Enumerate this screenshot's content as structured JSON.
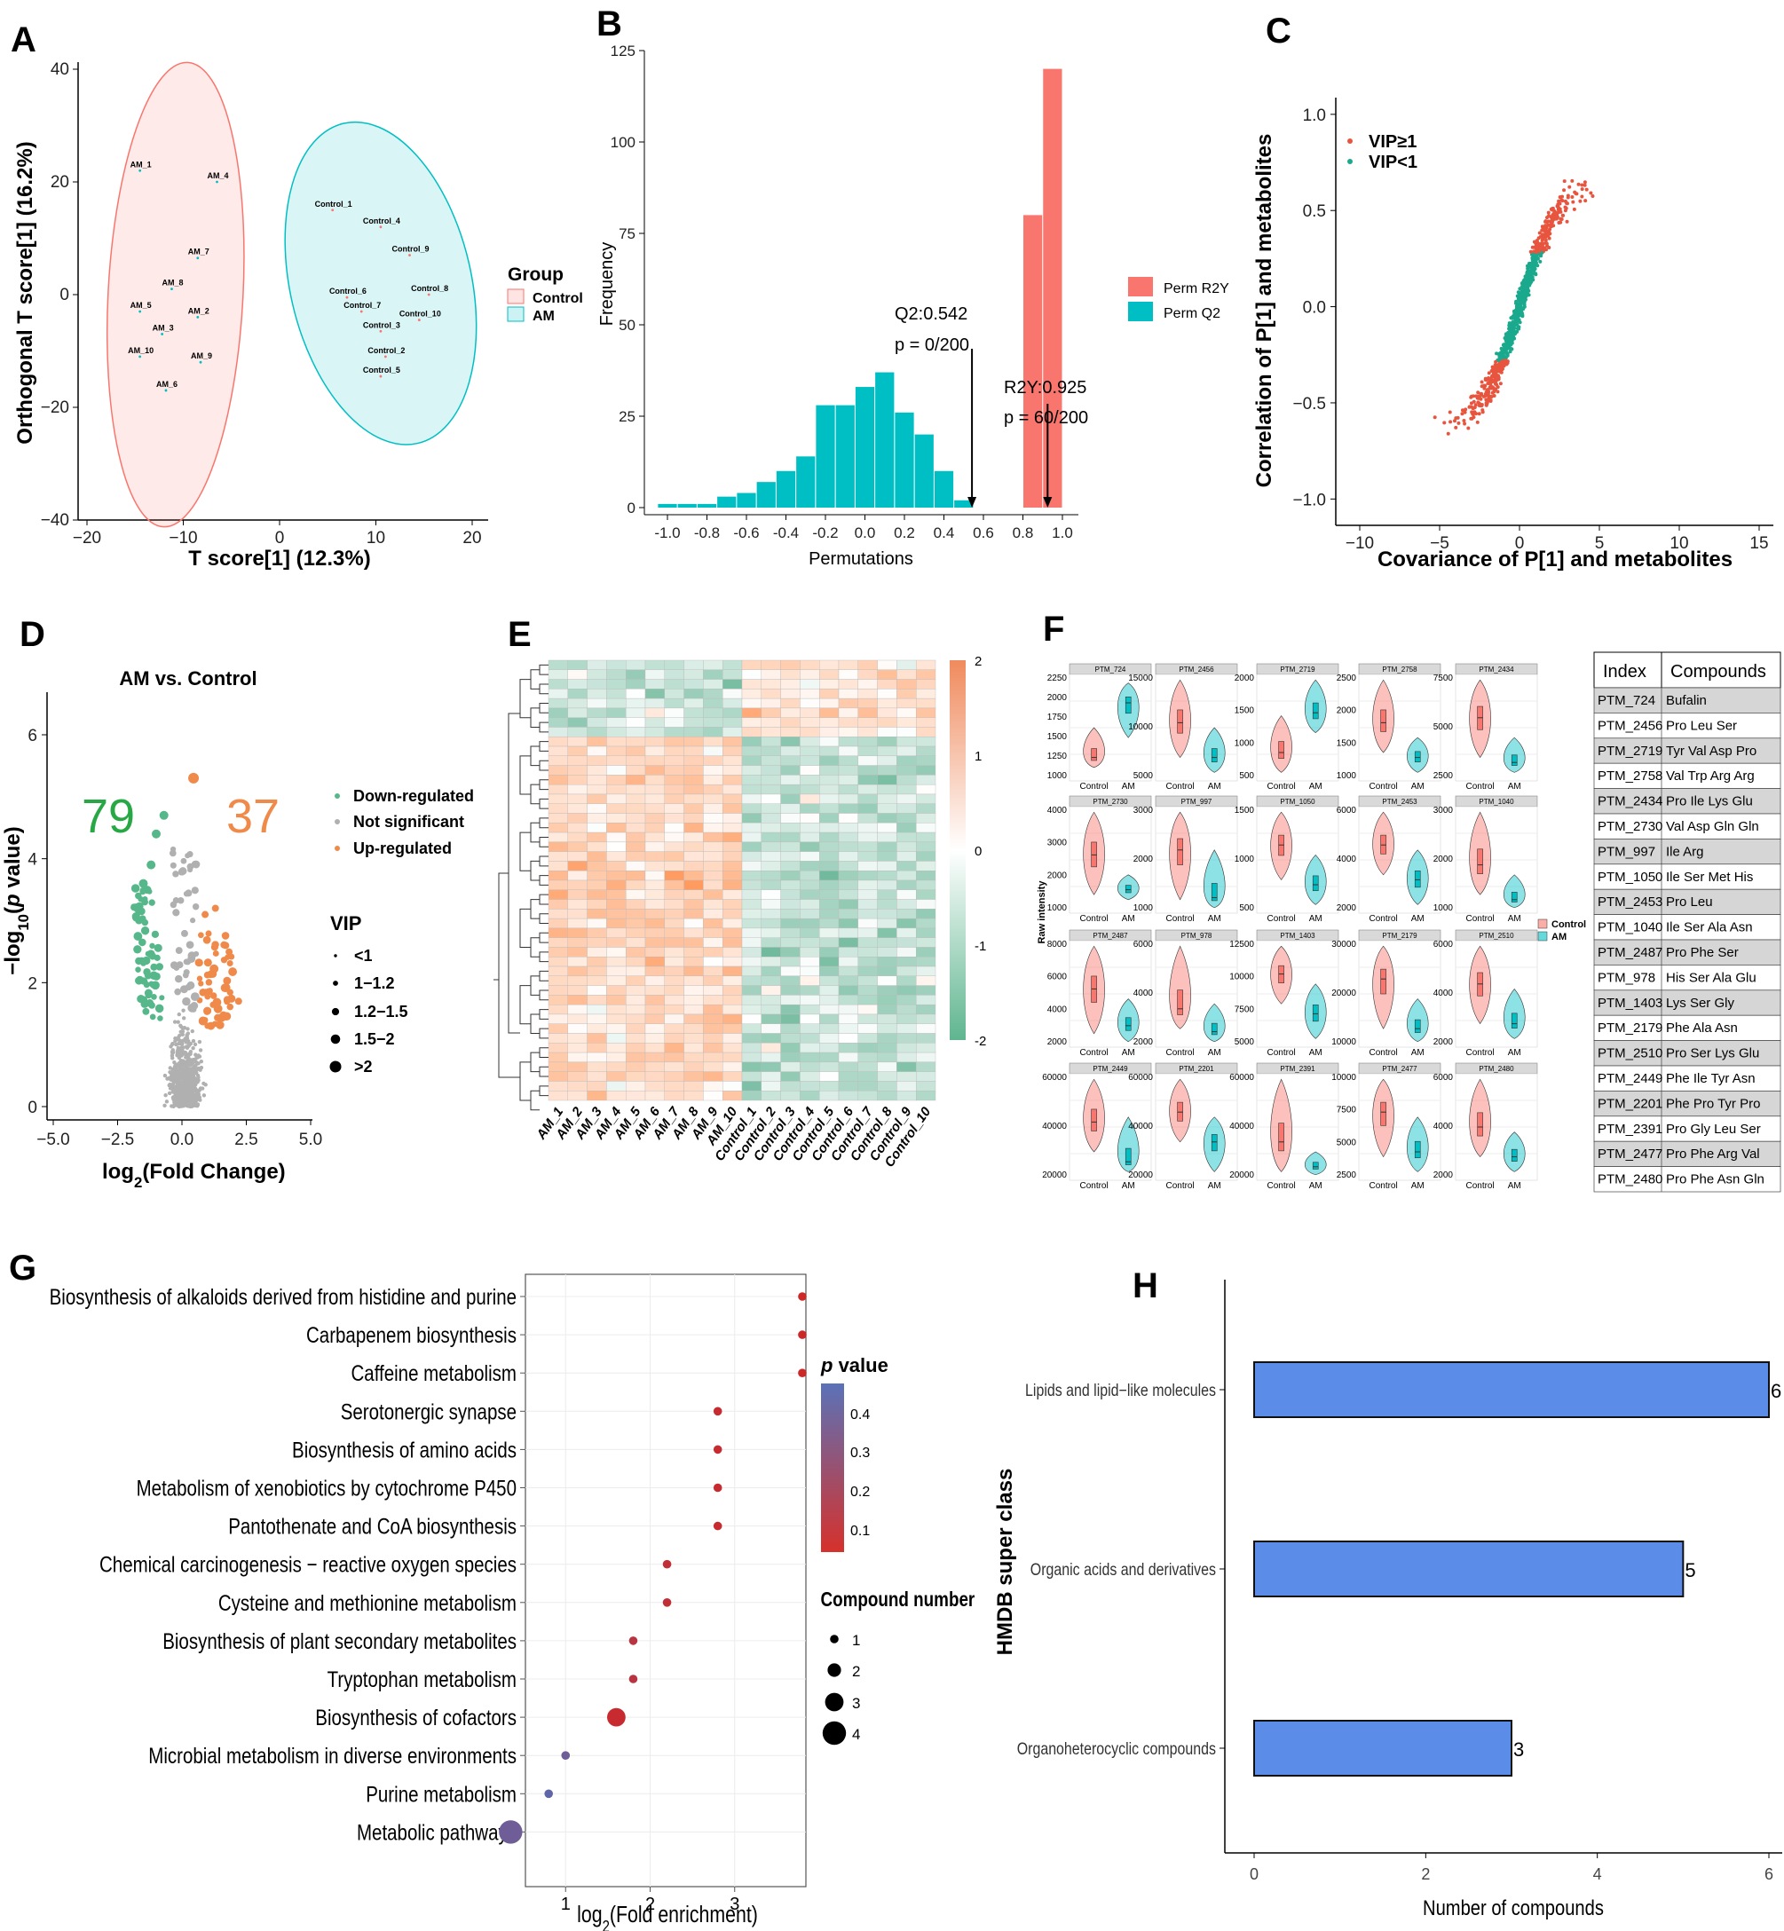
{
  "panels": [
    "A",
    "B",
    "C",
    "D",
    "E",
    "F",
    "G",
    "H"
  ],
  "colors": {
    "control": "#f8766d",
    "am": "#00bfc4",
    "down": "#56b88a",
    "up": "#ef8a4a",
    "ns": "#b0b0b0",
    "bar": "#5b8de8"
  },
  "chart_data": [
    {
      "panel": "A",
      "type": "scatter",
      "xlabel": "T score[1] (12.3%)",
      "ylabel": "Orthogonal T score[1] (16.2%)",
      "xlim": [
        -20,
        20
      ],
      "ylim": [
        -40,
        40
      ],
      "xticks": [
        "−20",
        "−10",
        "0",
        "10",
        "20"
      ],
      "yticks": [
        "−40",
        "−20",
        "0",
        "20",
        "40"
      ],
      "legend_title": "Group",
      "legend": [
        "Control",
        "AM"
      ],
      "points": [
        {
          "label": "AM_1",
          "x": -14.5,
          "y": 22,
          "g": "AM"
        },
        {
          "label": "AM_4",
          "x": -6.5,
          "y": 20,
          "g": "AM"
        },
        {
          "label": "AM_7",
          "x": -8.5,
          "y": 6.5,
          "g": "AM"
        },
        {
          "label": "AM_8",
          "x": -11.2,
          "y": 1,
          "g": "AM"
        },
        {
          "label": "AM_5",
          "x": -14.5,
          "y": -3,
          "g": "AM"
        },
        {
          "label": "AM_2",
          "x": -8.5,
          "y": -4,
          "g": "AM"
        },
        {
          "label": "AM_3",
          "x": -12.2,
          "y": -7,
          "g": "AM"
        },
        {
          "label": "AM_10",
          "x": -14.5,
          "y": -11,
          "g": "AM"
        },
        {
          "label": "AM_9",
          "x": -8.2,
          "y": -12,
          "g": "AM"
        },
        {
          "label": "AM_6",
          "x": -11.8,
          "y": -17,
          "g": "AM"
        },
        {
          "label": "Control_1",
          "x": 5.5,
          "y": 15,
          "g": "Control"
        },
        {
          "label": "Control_4",
          "x": 10.5,
          "y": 12,
          "g": "Control"
        },
        {
          "label": "Control_9",
          "x": 13.5,
          "y": 7,
          "g": "Control"
        },
        {
          "label": "Control_6",
          "x": 7,
          "y": -0.5,
          "g": "Control"
        },
        {
          "label": "Control_8",
          "x": 15.5,
          "y": 0,
          "g": "Control"
        },
        {
          "label": "Control_7",
          "x": 8.5,
          "y": -3,
          "g": "Control"
        },
        {
          "label": "Control_10",
          "x": 14.5,
          "y": -4.5,
          "g": "Control"
        },
        {
          "label": "Control_3",
          "x": 10.5,
          "y": -6.5,
          "g": "Control"
        },
        {
          "label": "Control_2",
          "x": 11,
          "y": -11,
          "g": "Control"
        },
        {
          "label": "Control_5",
          "x": 10.5,
          "y": -14.5,
          "g": "Control"
        }
      ]
    },
    {
      "panel": "B",
      "type": "bar",
      "xlabel": "Permutations",
      "ylabel": "Frequency",
      "xlim": [
        -1.05,
        1.1
      ],
      "ylim": [
        0,
        125
      ],
      "xticks": [
        "-1.0",
        "-0.8",
        "-0.6",
        "-0.4",
        "-0.2",
        "0.0",
        "0.2",
        "0.4",
        "0.6",
        "0.8",
        "1.0"
      ],
      "yticks": [
        "0",
        "25",
        "50",
        "75",
        "100",
        "125"
      ],
      "legend": [
        "Perm R2Y",
        "Perm Q2"
      ],
      "q2_bins": [
        [
          -1.0,
          1
        ],
        [
          -0.9,
          1
        ],
        [
          -0.8,
          1
        ],
        [
          -0.7,
          3
        ],
        [
          -0.6,
          4
        ],
        [
          -0.5,
          7
        ],
        [
          -0.4,
          10
        ],
        [
          -0.3,
          14
        ],
        [
          -0.2,
          28
        ],
        [
          -0.1,
          28
        ],
        [
          0.0,
          33
        ],
        [
          0.1,
          37
        ],
        [
          0.2,
          26
        ],
        [
          0.3,
          20
        ],
        [
          0.4,
          10
        ],
        [
          0.5,
          2
        ]
      ],
      "r2y_bins": [
        [
          0.85,
          80
        ],
        [
          0.95,
          120
        ]
      ],
      "annotations": [
        "Q2:0.542",
        "p = 0/200",
        "R2Y:0.925",
        "p = 60/200"
      ],
      "q2_value": 0.542,
      "r2y_value": 0.925
    },
    {
      "panel": "C",
      "type": "scatter",
      "xlabel": "Covariance of P[1] and metabolites",
      "ylabel": "Correlation of P[1] and metabolites",
      "xlim": [
        -11.5,
        16
      ],
      "ylim": [
        -1.1,
        1.05
      ],
      "xticks": [
        "−10",
        "−5",
        "0",
        "5",
        "10",
        "15"
      ],
      "yticks": [
        "−1.0",
        "−0.5",
        "0.0",
        "0.5",
        "1.0"
      ],
      "legend": [
        "VIP≥1",
        "VIP<1"
      ]
    },
    {
      "panel": "D",
      "type": "scatter",
      "title": "AM vs. Control",
      "xlabel": "log2(Fold Change)",
      "ylabel": "−log10(p value)",
      "xlim": [
        -5,
        5
      ],
      "ylim": [
        -0.2,
        6.7
      ],
      "xticks": [
        "−5.0",
        "−2.5",
        "0.0",
        "2.5",
        "5.0"
      ],
      "yticks": [
        "0",
        "2",
        "4",
        "6"
      ],
      "down_count": "79",
      "up_count": "37",
      "legend": [
        "Down-regulated",
        "Not significant",
        "Up-regulated"
      ],
      "vip_title": "VIP",
      "vip_legend": [
        "<1",
        "1−1.2",
        "1.2−1.5",
        "1.5−2",
        ">2"
      ]
    },
    {
      "panel": "E",
      "type": "heatmap",
      "columns": [
        "AM_1",
        "AM_2",
        "AM_3",
        "AM_4",
        "AM_5",
        "AM_6",
        "AM_7",
        "AM_8",
        "AM_9",
        "AM_10",
        "Control_1",
        "Control_2",
        "Control_3",
        "Control_4",
        "Control_5",
        "Control_6",
        "Control_7",
        "Control_8",
        "Control_9",
        "Control_10"
      ],
      "rows": 46,
      "scale_ticks": [
        "2",
        "1",
        "0",
        "-1",
        "-2"
      ]
    },
    {
      "panel": "F",
      "type": "table",
      "ylabel": "Raw intensity",
      "legend": [
        "Control",
        "AM"
      ],
      "xcats": [
        "Control",
        "AM"
      ],
      "violins": [
        {
          "name": "PTM_724",
          "ticks": [
            "1000",
            "1250",
            "1500",
            "1750",
            "2000",
            "2250"
          ],
          "c": [
            0.1,
            0.5,
            0.2
          ],
          "a": [
            0.4,
            0.95,
            0.75
          ]
        },
        {
          "name": "PTM_2456",
          "ticks": [
            "5000",
            "10000",
            "15000"
          ],
          "c": [
            0.2,
            0.98,
            0.55
          ],
          "a": [
            0.05,
            0.5,
            0.2
          ]
        },
        {
          "name": "PTM_2719",
          "ticks": [
            "500",
            "1000",
            "1500",
            "2000"
          ],
          "c": [
            0.05,
            0.62,
            0.25
          ],
          "a": [
            0.45,
            0.98,
            0.65
          ]
        },
        {
          "name": "PTM_2758",
          "ticks": [
            "1000",
            "1500",
            "2000",
            "2500"
          ],
          "c": [
            0.25,
            0.98,
            0.55
          ],
          "a": [
            0.05,
            0.4,
            0.2
          ]
        },
        {
          "name": "PTM_2434",
          "ticks": [
            "2500",
            "5000",
            "7500"
          ],
          "c": [
            0.2,
            0.98,
            0.6
          ],
          "a": [
            0.05,
            0.4,
            0.15
          ]
        },
        {
          "name": "PTM_2730",
          "ticks": [
            "1000",
            "2000",
            "3000",
            "4000"
          ],
          "c": [
            0.15,
            0.98,
            0.55
          ],
          "a": [
            0.1,
            0.35,
            0.2
          ]
        },
        {
          "name": "PTM_997",
          "ticks": [
            "1000",
            "2000",
            "3000"
          ],
          "c": [
            0.1,
            0.98,
            0.6
          ],
          "a": [
            0.02,
            0.6,
            0.12
          ]
        },
        {
          "name": "PTM_1050",
          "ticks": [
            "500",
            "1000",
            "1500"
          ],
          "c": [
            0.3,
            0.98,
            0.65
          ],
          "a": [
            0.05,
            0.55,
            0.25
          ]
        },
        {
          "name": "PTM_2453",
          "ticks": [
            "2000",
            "4000",
            "6000"
          ],
          "c": [
            0.35,
            0.98,
            0.65
          ],
          "a": [
            0.05,
            0.6,
            0.3
          ]
        },
        {
          "name": "PTM_1040",
          "ticks": [
            "1000",
            "2000",
            "3000"
          ],
          "c": [
            0.15,
            0.98,
            0.45
          ],
          "a": [
            0.02,
            0.35,
            0.1
          ]
        },
        {
          "name": "PTM_2487",
          "ticks": [
            "2000",
            "4000",
            "6000",
            "8000"
          ],
          "c": [
            0.1,
            0.98,
            0.55
          ],
          "a": [
            0.02,
            0.45,
            0.18
          ]
        },
        {
          "name": "PTM_978",
          "ticks": [
            "2000",
            "4000",
            "6000"
          ],
          "c": [
            0.15,
            0.98,
            0.35
          ],
          "a": [
            0.02,
            0.4,
            0.12
          ]
        },
        {
          "name": "PTM_1403",
          "ticks": [
            "5000",
            "7500",
            "10000",
            "12500"
          ],
          "c": [
            0.4,
            0.98,
            0.7
          ],
          "a": [
            0.05,
            0.6,
            0.3
          ]
        },
        {
          "name": "PTM_2179",
          "ticks": [
            "10000",
            "20000",
            "30000"
          ],
          "c": [
            0.15,
            0.98,
            0.65
          ],
          "a": [
            0.02,
            0.45,
            0.15
          ]
        },
        {
          "name": "PTM_2510",
          "ticks": [
            "2000",
            "4000",
            "6000"
          ],
          "c": [
            0.2,
            0.98,
            0.6
          ],
          "a": [
            0.05,
            0.55,
            0.2
          ]
        },
        {
          "name": "PTM_2449",
          "ticks": [
            "20000",
            "40000",
            "60000"
          ],
          "c": [
            0.25,
            0.98,
            0.55
          ],
          "a": [
            0.05,
            0.6,
            0.15
          ]
        },
        {
          "name": "PTM_2201",
          "ticks": [
            "20000",
            "40000",
            "60000"
          ],
          "c": [
            0.35,
            0.98,
            0.65
          ],
          "a": [
            0.05,
            0.6,
            0.35
          ]
        },
        {
          "name": "PTM_2391",
          "ticks": [
            "20000",
            "40000",
            "60000"
          ],
          "c": [
            0.05,
            0.98,
            0.35
          ],
          "a": [
            0.02,
            0.25,
            0.1
          ]
        },
        {
          "name": "PTM_2477",
          "ticks": [
            "2500",
            "5000",
            "7500",
            "10000"
          ],
          "c": [
            0.2,
            0.98,
            0.65
          ],
          "a": [
            0.05,
            0.6,
            0.25
          ]
        },
        {
          "name": "PTM_2480",
          "ticks": [
            "2000",
            "4000",
            "6000"
          ],
          "c": [
            0.2,
            0.98,
            0.5
          ],
          "a": [
            0.05,
            0.45,
            0.2
          ]
        }
      ],
      "table_headers": [
        "Index",
        "Compounds"
      ],
      "table_rows": [
        [
          "PTM_724",
          "Bufalin"
        ],
        [
          "PTM_2456",
          "Pro Leu Ser"
        ],
        [
          "PTM_2719",
          "Tyr Val Asp Pro"
        ],
        [
          "PTM_2758",
          "Val Trp Arg Arg"
        ],
        [
          "PTM_2434",
          "Pro Ile Lys Glu"
        ],
        [
          "PTM_2730",
          "Val Asp Gln Gln"
        ],
        [
          "PTM_997",
          "Ile Arg"
        ],
        [
          "PTM_1050",
          "Ile Ser Met His"
        ],
        [
          "PTM_2453",
          "Pro Leu"
        ],
        [
          "PTM_1040",
          "Ile Ser Ala Asn"
        ],
        [
          "PTM_2487",
          "Pro Phe Ser"
        ],
        [
          "PTM_978",
          "His Ser Ala Glu"
        ],
        [
          "PTM_1403",
          "Lys Ser Gly"
        ],
        [
          "PTM_2179",
          "Phe Ala Asn"
        ],
        [
          "PTM_2510",
          "Pro Ser Lys Glu"
        ],
        [
          "PTM_2449",
          "Phe Ile Tyr Asn"
        ],
        [
          "PTM_2201",
          "Phe Pro Tyr Pro"
        ],
        [
          "PTM_2391",
          "Pro Gly Leu Ser"
        ],
        [
          "PTM_2477",
          "Pro Phe Arg Val"
        ],
        [
          "PTM_2480",
          "Pro Phe Asn Gln"
        ]
      ]
    },
    {
      "panel": "G",
      "type": "scatter",
      "xlabel": "log2(Fold enrichment)",
      "xlim": [
        0.2,
        4.2
      ],
      "xticks": [
        "1",
        "2",
        "3"
      ],
      "pvalue_title": "p value",
      "pvalue_ticks": [
        "0.4",
        "0.3",
        "0.2",
        "0.1"
      ],
      "count_title": "Compound number",
      "count_ticks": [
        "1",
        "2",
        "3",
        "4"
      ],
      "pathways": [
        {
          "name": "Biosynthesis of alkaloids derived from histidine and purine",
          "x": 3.8,
          "p": 0.03,
          "n": 1
        },
        {
          "name": "Carbapenem biosynthesis",
          "x": 3.8,
          "p": 0.03,
          "n": 1
        },
        {
          "name": "Caffeine metabolism",
          "x": 3.8,
          "p": 0.03,
          "n": 1
        },
        {
          "name": "Serotonergic synapse",
          "x": 2.8,
          "p": 0.05,
          "n": 1
        },
        {
          "name": "Biosynthesis of amino acids",
          "x": 2.8,
          "p": 0.05,
          "n": 1
        },
        {
          "name": "Metabolism of xenobiotics by cytochrome P450",
          "x": 2.8,
          "p": 0.05,
          "n": 1
        },
        {
          "name": "Pantothenate and CoA biosynthesis",
          "x": 2.8,
          "p": 0.05,
          "n": 1
        },
        {
          "name": "Chemical carcinogenesis − reactive oxygen species",
          "x": 2.2,
          "p": 0.07,
          "n": 1
        },
        {
          "name": "Cysteine and methionine metabolism",
          "x": 2.2,
          "p": 0.07,
          "n": 1
        },
        {
          "name": "Biosynthesis of plant secondary metabolites",
          "x": 1.8,
          "p": 0.1,
          "n": 1
        },
        {
          "name": "Tryptophan metabolism",
          "x": 1.8,
          "p": 0.1,
          "n": 1
        },
        {
          "name": "Biosynthesis of cofactors",
          "x": 1.6,
          "p": 0.05,
          "n": 3
        },
        {
          "name": "Microbial metabolism in diverse environments",
          "x": 1.0,
          "p": 0.35,
          "n": 1
        },
        {
          "name": "Purine metabolism",
          "x": 0.8,
          "p": 0.4,
          "n": 1
        },
        {
          "name": "Metabolic pathways",
          "x": 0.35,
          "p": 0.35,
          "n": 4
        }
      ]
    },
    {
      "panel": "H",
      "type": "bar",
      "xlabel": "Number of compounds",
      "ylabel": "HMDB super class",
      "xlim": [
        0,
        6
      ],
      "xticks": [
        "0",
        "2",
        "4",
        "6"
      ],
      "categories": [
        "Lipids and lipid−like molecules",
        "Organic acids and derivatives",
        "Organoheterocyclic compounds"
      ],
      "values": [
        6,
        5,
        3
      ],
      "value_labels": [
        "6",
        "5",
        "3"
      ]
    }
  ]
}
